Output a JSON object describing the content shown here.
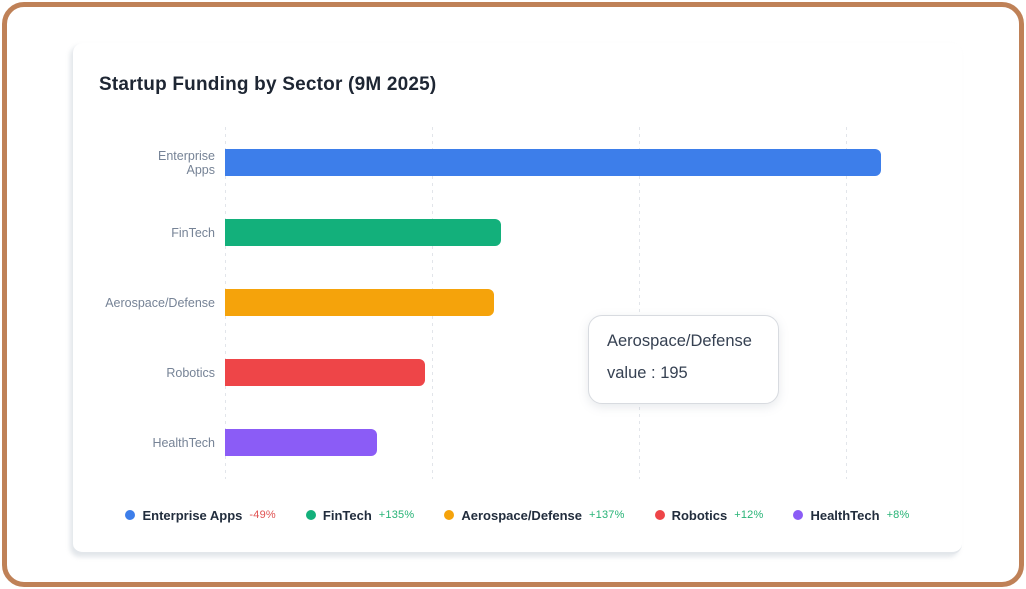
{
  "title": "Startup Funding by Sector (9M 2025)",
  "colors": {
    "frame_border": "#BF8157",
    "title_text": "#1E2633",
    "axis_label_text": "#768396",
    "gridline": "#E2E5EA",
    "legend_label_text": "#222D3D",
    "delta_negative": "#E05252",
    "delta_positive": "#27B376",
    "tooltip_text": "#364152",
    "tooltip_border": "#D8DBE0"
  },
  "chart_data": {
    "type": "bar",
    "orientation": "horizontal",
    "title": "Startup Funding by Sector (9M 2025)",
    "categories": [
      "Enterprise Apps",
      "FinTech",
      "Aerospace/Defense",
      "Robotics",
      "HealthTech"
    ],
    "values": [
      475,
      200,
      195,
      145,
      110
    ],
    "bar_colors": [
      "#3D7EEA",
      "#13B07B",
      "#F5A30B",
      "#EE4548",
      "#8B5CF6"
    ],
    "axis_labels": [
      [
        "Enterprise",
        "Apps"
      ],
      [
        "FinTech"
      ],
      [
        "Aerospace/Defense"
      ],
      [
        "Robotics"
      ],
      [
        "HealthTech"
      ]
    ],
    "x_gridline_values": [
      0,
      150,
      300,
      450
    ],
    "xlim": [
      0,
      520
    ],
    "grid": "dashed-vertical-gridlines",
    "legend_position": "bottom"
  },
  "tooltip": {
    "series": "Aerospace/Defense",
    "value_text": "value : 195"
  },
  "legend": {
    "items": [
      {
        "label": "Enterprise Apps",
        "delta": "-49%",
        "negative": true,
        "color": "#3D7EEA"
      },
      {
        "label": "FinTech",
        "delta": "+135%",
        "negative": false,
        "color": "#13B07B"
      },
      {
        "label": "Aerospace/Defense",
        "delta": "+137%",
        "negative": false,
        "color": "#F5A30B"
      },
      {
        "label": "Robotics",
        "delta": "+12%",
        "negative": false,
        "color": "#EE4548"
      },
      {
        "label": "HealthTech",
        "delta": "+8%",
        "negative": false,
        "color": "#8B5CF6"
      }
    ]
  }
}
